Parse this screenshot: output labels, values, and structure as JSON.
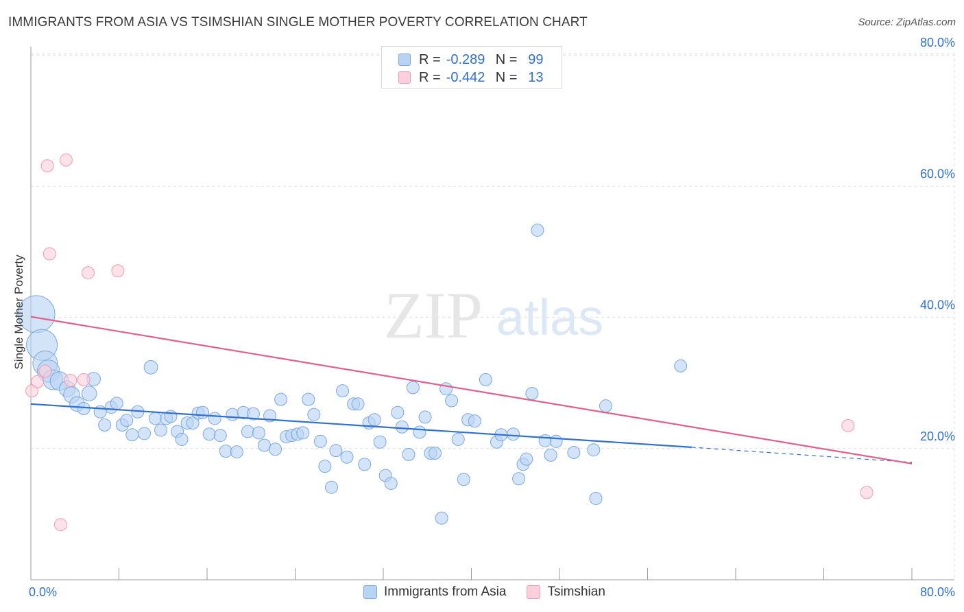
{
  "title": "IMMIGRANTS FROM ASIA VS TSIMSHIAN SINGLE MOTHER POVERTY CORRELATION CHART",
  "source": "Source: ZipAtlas.com",
  "watermark": {
    "zip": "ZIP",
    "atlas": "atlas"
  },
  "colors": {
    "blue_fill": "#b9d3f3",
    "blue_stroke": "#7aa7e0",
    "blue_line": "#2f6fd0",
    "pink_fill": "#fbd0dc",
    "pink_stroke": "#ef9ab3",
    "pink_line": "#e0608a",
    "tick_label": "#2f6fd0",
    "grid": "#dddddd"
  },
  "legend_top": {
    "rows": [
      {
        "swatch": "blue",
        "r_label": "R =",
        "r_value": "-0.289",
        "n_label": "N =",
        "n_value": "99"
      },
      {
        "swatch": "pink",
        "r_label": "R =",
        "r_value": "-0.442",
        "n_label": "N =",
        "n_value": "13"
      }
    ]
  },
  "legend_bottom": [
    "Immigrants from Asia",
    "Tsimshian"
  ],
  "chart_data": {
    "type": "scatter",
    "title": "IMMIGRANTS FROM ASIA VS TSIMSHIAN SINGLE MOTHER POVERTY CORRELATION CHART",
    "xlabel": "",
    "ylabel": "Single Mother Poverty",
    "xlim": [
      0,
      80
    ],
    "ylim": [
      0,
      82
    ],
    "x_tick_labels": [
      "0.0%",
      "80.0%"
    ],
    "y_ticks": [
      20,
      40,
      60,
      80
    ],
    "y_tick_labels": [
      "20.0%",
      "40.0%",
      "60.0%",
      "80.0%"
    ],
    "grid": true,
    "series": [
      {
        "name": "Immigrants from Asia",
        "color": "blue",
        "r": -0.289,
        "n": 99,
        "trend": {
          "x0": 0,
          "y0": 26.8,
          "x1": 60,
          "y1": 20.2,
          "dashed_to_x": 80,
          "dashed_to_y": 17.9
        },
        "points": [
          [
            0.5,
            40.5,
            3
          ],
          [
            1.0,
            35.8,
            2.5
          ],
          [
            1.3,
            33.0,
            2
          ],
          [
            1.6,
            31.8,
            1.8
          ],
          [
            2.0,
            30.5,
            1.6
          ],
          [
            2.6,
            30.3,
            1.5
          ],
          [
            3.3,
            29.1,
            1.3
          ],
          [
            3.7,
            28.2,
            1.3
          ],
          [
            4.2,
            26.8,
            1.2
          ],
          [
            4.8,
            26.1,
            1.0
          ],
          [
            5.3,
            28.4,
            1.2
          ],
          [
            5.7,
            30.6,
            1.1
          ],
          [
            6.3,
            25.6,
            1
          ],
          [
            6.7,
            23.6,
            1
          ],
          [
            7.3,
            26.3,
            1
          ],
          [
            7.8,
            26.9,
            1
          ],
          [
            8.3,
            23.6,
            1
          ],
          [
            8.7,
            24.3,
            1
          ],
          [
            9.2,
            22.1,
            1
          ],
          [
            9.7,
            25.6,
            1
          ],
          [
            10.3,
            22.3,
            1
          ],
          [
            10.9,
            32.4,
            1.1
          ],
          [
            11.3,
            24.6,
            1
          ],
          [
            11.8,
            22.8,
            1
          ],
          [
            12.3,
            24.6,
            1
          ],
          [
            12.7,
            24.9,
            1
          ],
          [
            13.3,
            22.6,
            1
          ],
          [
            13.7,
            21.4,
            1
          ],
          [
            14.2,
            23.9,
            1
          ],
          [
            14.7,
            23.9,
            1
          ],
          [
            15.2,
            25.4,
            1
          ],
          [
            15.6,
            25.5,
            1
          ],
          [
            16.2,
            22.2,
            1
          ],
          [
            16.7,
            24.6,
            1
          ],
          [
            17.2,
            22.0,
            1
          ],
          [
            17.7,
            19.6,
            1
          ],
          [
            18.3,
            25.2,
            1
          ],
          [
            18.7,
            19.5,
            1
          ],
          [
            19.3,
            25.5,
            1
          ],
          [
            19.7,
            22.6,
            1
          ],
          [
            20.2,
            25.3,
            1
          ],
          [
            20.7,
            22.4,
            1
          ],
          [
            21.2,
            20.5,
            1
          ],
          [
            21.7,
            25.0,
            1
          ],
          [
            22.2,
            19.9,
            1
          ],
          [
            22.7,
            27.5,
            1
          ],
          [
            23.2,
            21.8,
            1
          ],
          [
            23.7,
            22.0,
            1
          ],
          [
            24.2,
            22.2,
            1
          ],
          [
            24.7,
            22.4,
            1
          ],
          [
            25.2,
            27.5,
            1
          ],
          [
            25.7,
            25.2,
            1
          ],
          [
            26.3,
            21.1,
            1
          ],
          [
            26.7,
            17.3,
            1
          ],
          [
            27.3,
            14.1,
            1
          ],
          [
            27.7,
            19.7,
            1
          ],
          [
            28.3,
            28.8,
            1
          ],
          [
            28.7,
            18.7,
            1
          ],
          [
            29.3,
            26.8,
            1
          ],
          [
            29.7,
            26.8,
            1
          ],
          [
            30.3,
            17.6,
            1
          ],
          [
            30.7,
            23.9,
            1
          ],
          [
            31.2,
            24.4,
            1
          ],
          [
            31.7,
            21.0,
            1
          ],
          [
            32.2,
            15.9,
            1
          ],
          [
            32.7,
            14.7,
            1
          ],
          [
            33.3,
            25.5,
            1
          ],
          [
            33.7,
            23.3,
            1
          ],
          [
            34.3,
            19.1,
            1
          ],
          [
            34.7,
            29.3,
            1
          ],
          [
            35.3,
            22.5,
            1
          ],
          [
            35.8,
            24.8,
            1
          ],
          [
            36.3,
            19.3,
            1
          ],
          [
            36.7,
            19.3,
            1
          ],
          [
            37.3,
            9.4,
            1
          ],
          [
            37.7,
            29.1,
            1
          ],
          [
            38.2,
            27.3,
            1
          ],
          [
            38.8,
            21.4,
            1
          ],
          [
            39.3,
            15.3,
            1
          ],
          [
            39.7,
            24.4,
            1
          ],
          [
            40.3,
            24.2,
            1
          ],
          [
            41.3,
            30.5,
            1
          ],
          [
            42.3,
            21.0,
            1
          ],
          [
            42.7,
            22.1,
            1
          ],
          [
            43.8,
            22.2,
            1
          ],
          [
            44.3,
            15.4,
            1
          ],
          [
            44.7,
            17.6,
            1
          ],
          [
            45.0,
            18.4,
            1
          ],
          [
            45.5,
            28.4,
            1
          ],
          [
            46.0,
            53.3,
            1
          ],
          [
            46.7,
            21.2,
            1
          ],
          [
            47.2,
            19.0,
            1
          ],
          [
            47.7,
            21.1,
            1
          ],
          [
            49.3,
            19.4,
            1
          ],
          [
            51.1,
            19.8,
            1
          ],
          [
            51.3,
            12.4,
            1
          ],
          [
            52.2,
            26.5,
            1
          ],
          [
            59.0,
            32.6,
            1
          ]
        ]
      },
      {
        "name": "Tsimshian",
        "color": "pink",
        "r": -0.442,
        "n": 13,
        "trend": {
          "x0": 0,
          "y0": 40.1,
          "x1": 80,
          "y1": 17.7
        },
        "points": [
          [
            0.1,
            28.8,
            1
          ],
          [
            0.6,
            30.2,
            1
          ],
          [
            1.5,
            63.1,
            1
          ],
          [
            1.7,
            49.7,
            1
          ],
          [
            1.3,
            31.8,
            1
          ],
          [
            2.7,
            8.4,
            1
          ],
          [
            3.2,
            64.0,
            1
          ],
          [
            3.6,
            30.4,
            1
          ],
          [
            4.8,
            30.5,
            1
          ],
          [
            5.2,
            46.8,
            1
          ],
          [
            7.9,
            47.1,
            1
          ],
          [
            74.2,
            23.5,
            1
          ],
          [
            75.9,
            13.3,
            1
          ]
        ]
      }
    ]
  }
}
